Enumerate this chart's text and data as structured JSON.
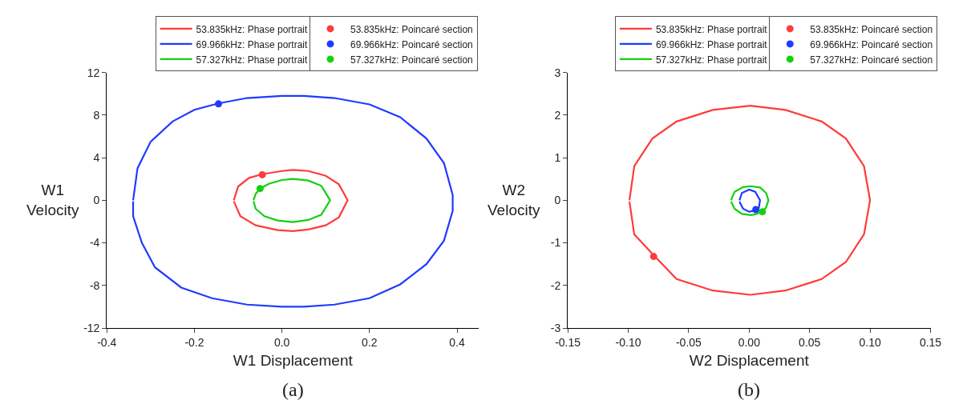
{
  "chart_data": [
    {
      "type": "line",
      "xlabel": "W1 Displacement",
      "ylabel": "W1\nVelocity",
      "annotations": [
        "(a)"
      ],
      "legend": "top",
      "marker": "none",
      "line_style": "solid",
      "xlim": [
        -0.4,
        0.45
      ],
      "xticks": [
        -0.4,
        -0.2,
        {
          "value": 0,
          "label": "0.0"
        },
        0.2,
        0.4
      ],
      "ylim": [
        -12,
        12
      ],
      "yticks": [
        -12,
        -8,
        -4,
        0,
        4,
        8,
        12
      ],
      "series": [
        {
          "name": "53.835kHz: Phase portrait",
          "color": "#ff3b3b",
          "x": [
            -0.11,
            -0.1,
            -0.075,
            -0.045,
            0,
            0.025,
            0.06,
            0.1,
            0.13,
            0.15,
            0.13,
            0.1,
            0.06,
            0.025,
            -0.01,
            -0.06,
            -0.095,
            -0.11
          ],
          "values": [
            0,
            1.3,
            2.1,
            2.45,
            2.75,
            2.85,
            2.75,
            2.3,
            1.5,
            0,
            -1.6,
            -2.35,
            -2.75,
            -2.9,
            -2.8,
            -2.35,
            -1.5,
            -0.1
          ]
        },
        {
          "name": "53.835kHz: Poincaré section",
          "type": "scatter",
          "marker": "circle",
          "color": "#ff3b3b",
          "x": [
            -0.045
          ],
          "values": [
            2.4
          ]
        },
        {
          "name": "69.966kHz: Phase portrait",
          "color": "#1f3bff",
          "x": [
            -0.34,
            -0.33,
            -0.3,
            -0.25,
            -0.2,
            -0.145,
            -0.08,
            0,
            0.05,
            0.12,
            0.2,
            0.27,
            0.33,
            0.37,
            0.39,
            0.39,
            0.37,
            0.33,
            0.27,
            0.2,
            0.12,
            0.05,
            0,
            -0.08,
            -0.16,
            -0.23,
            -0.29,
            -0.32,
            -0.34,
            -0.34
          ],
          "values": [
            0,
            3,
            5.5,
            7.4,
            8.5,
            9.1,
            9.6,
            9.8,
            9.8,
            9.6,
            9,
            7.8,
            5.8,
            3.5,
            0.5,
            -1,
            -3.8,
            -6,
            -7.9,
            -9.2,
            -9.8,
            -10,
            -10,
            -9.8,
            -9.2,
            -8.2,
            -6.3,
            -4,
            -1.5,
            -0.1
          ]
        },
        {
          "name": "69.966kHz: Poincaré section",
          "type": "scatter",
          "marker": "circle",
          "color": "#1f3bff",
          "x": [
            -0.145
          ],
          "values": [
            9.05
          ]
        },
        {
          "name": "57.327kHz: Phase portrait",
          "color": "#12d012",
          "x": [
            -0.065,
            -0.06,
            -0.05,
            -0.03,
            0,
            0.025,
            0.06,
            0.09,
            0.11,
            0.09,
            0.06,
            0.025,
            -0.01,
            -0.04,
            -0.06,
            -0.065
          ],
          "values": [
            0,
            0.6,
            1.1,
            1.55,
            1.9,
            2,
            1.85,
            1.35,
            0,
            -1.35,
            -1.85,
            -2.05,
            -1.9,
            -1.5,
            -0.8,
            -0.1
          ]
        },
        {
          "name": "57.327kHz: Poincaré section",
          "type": "scatter",
          "marker": "circle",
          "color": "#12d012",
          "x": [
            -0.05
          ],
          "values": [
            1.1
          ]
        }
      ]
    },
    {
      "type": "line",
      "xlabel": "W2 Displacement",
      "ylabel": "W2\nVelocity",
      "annotations": [
        "(b)"
      ],
      "legend": "top",
      "marker": "none",
      "line_style": "solid",
      "xlim": [
        -0.15,
        0.15
      ],
      "xticks": [
        -0.15,
        {
          "value": -0.1,
          "label": "-0.10"
        },
        -0.05,
        {
          "value": 0,
          "label": "0.00"
        },
        0.05,
        {
          "value": 0.1,
          "label": "0.10"
        },
        0.15
      ],
      "ylim": [
        -3,
        3
      ],
      "yticks": [
        -3,
        -2,
        -1,
        0,
        1,
        2,
        3
      ],
      "series": [
        {
          "name": "53.835kHz: Phase portrait",
          "color": "#ff3b3b",
          "x": [
            -0.099,
            -0.095,
            -0.08,
            -0.06,
            -0.03,
            0.001,
            0.03,
            0.06,
            0.08,
            0.095,
            0.1,
            0.095,
            0.08,
            0.06,
            0.03,
            0.001,
            -0.03,
            -0.06,
            -0.078,
            -0.095,
            -0.099
          ],
          "values": [
            0,
            0.8,
            1.45,
            1.85,
            2.12,
            2.22,
            2.12,
            1.85,
            1.45,
            0.8,
            0,
            -0.8,
            -1.45,
            -1.85,
            -2.12,
            -2.22,
            -2.12,
            -1.85,
            -1.32,
            -0.8,
            -0.03
          ]
        },
        {
          "name": "53.835kHz: Poincaré section",
          "type": "scatter",
          "marker": "circle",
          "color": "#ff3b3b",
          "x": [
            -0.079
          ],
          "values": [
            -1.32
          ]
        },
        {
          "name": "69.966kHz: Phase portrait",
          "color": "#1f3bff",
          "x": [
            -0.008,
            -0.006,
            0,
            0.005,
            0.009,
            0.008,
            0.005,
            0,
            -0.005,
            -0.008
          ],
          "values": [
            0,
            0.17,
            0.25,
            0.2,
            0,
            -0.18,
            -0.24,
            -0.27,
            -0.2,
            -0.03
          ]
        },
        {
          "name": "69.966kHz: Poincaré section",
          "type": "scatter",
          "marker": "circle",
          "color": "#1f3bff",
          "x": [
            0.0055
          ],
          "values": [
            -0.22
          ]
        },
        {
          "name": "57.327kHz: Phase portrait",
          "color": "#12d012",
          "x": [
            -0.015,
            -0.012,
            -0.005,
            0.0015,
            0.009,
            0.014,
            0.016,
            0.014,
            0.011,
            0.005,
            0.0015,
            -0.006,
            -0.012,
            -0.015
          ],
          "values": [
            0,
            0.2,
            0.31,
            0.33,
            0.3,
            0.17,
            0,
            -0.17,
            -0.27,
            -0.33,
            -0.35,
            -0.32,
            -0.2,
            -0.03
          ]
        },
        {
          "name": "57.327kHz: Poincaré section",
          "type": "scatter",
          "marker": "circle",
          "color": "#12d012",
          "x": [
            0.011
          ],
          "values": [
            -0.27
          ]
        }
      ]
    }
  ]
}
